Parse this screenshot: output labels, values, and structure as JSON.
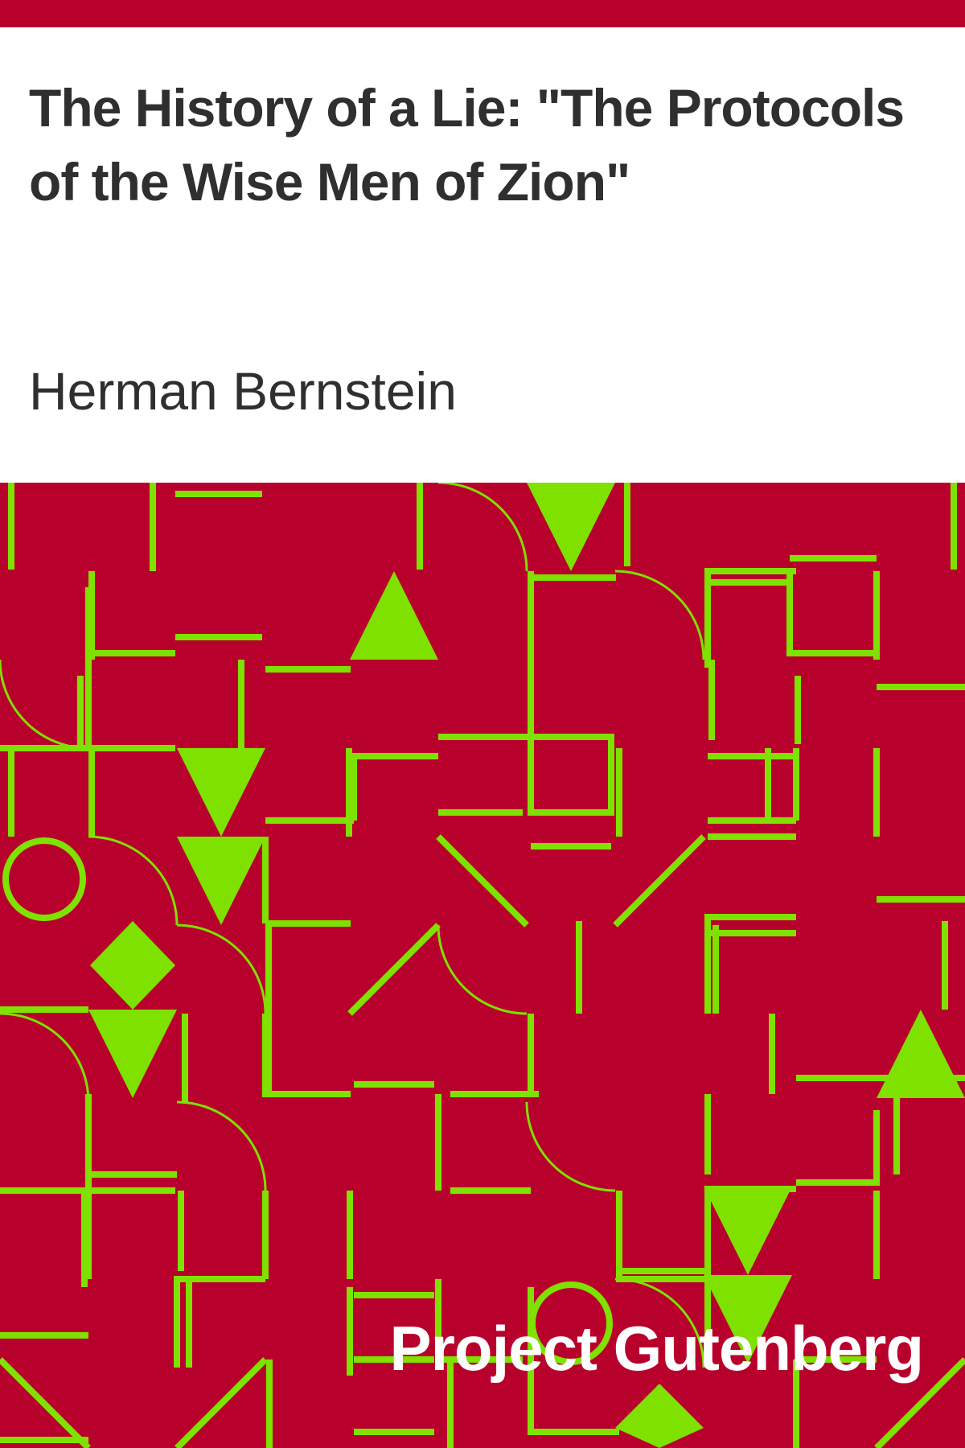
{
  "cover": {
    "title": "The History of a Lie: \"The Protocols of the Wise Men of Zion\"",
    "author": "Herman Bernstein",
    "publisher": "Project Gutenberg"
  },
  "colors": {
    "background": "#ffffff",
    "band": "#b8002c",
    "pattern_line": "#7ee100",
    "text_dark": "#2f2f2f",
    "text_light": "#ffffff"
  },
  "pattern_icons": [
    "triangle-icon",
    "circle-icon",
    "diamond-icon",
    "arc-icon",
    "line-icon"
  ]
}
